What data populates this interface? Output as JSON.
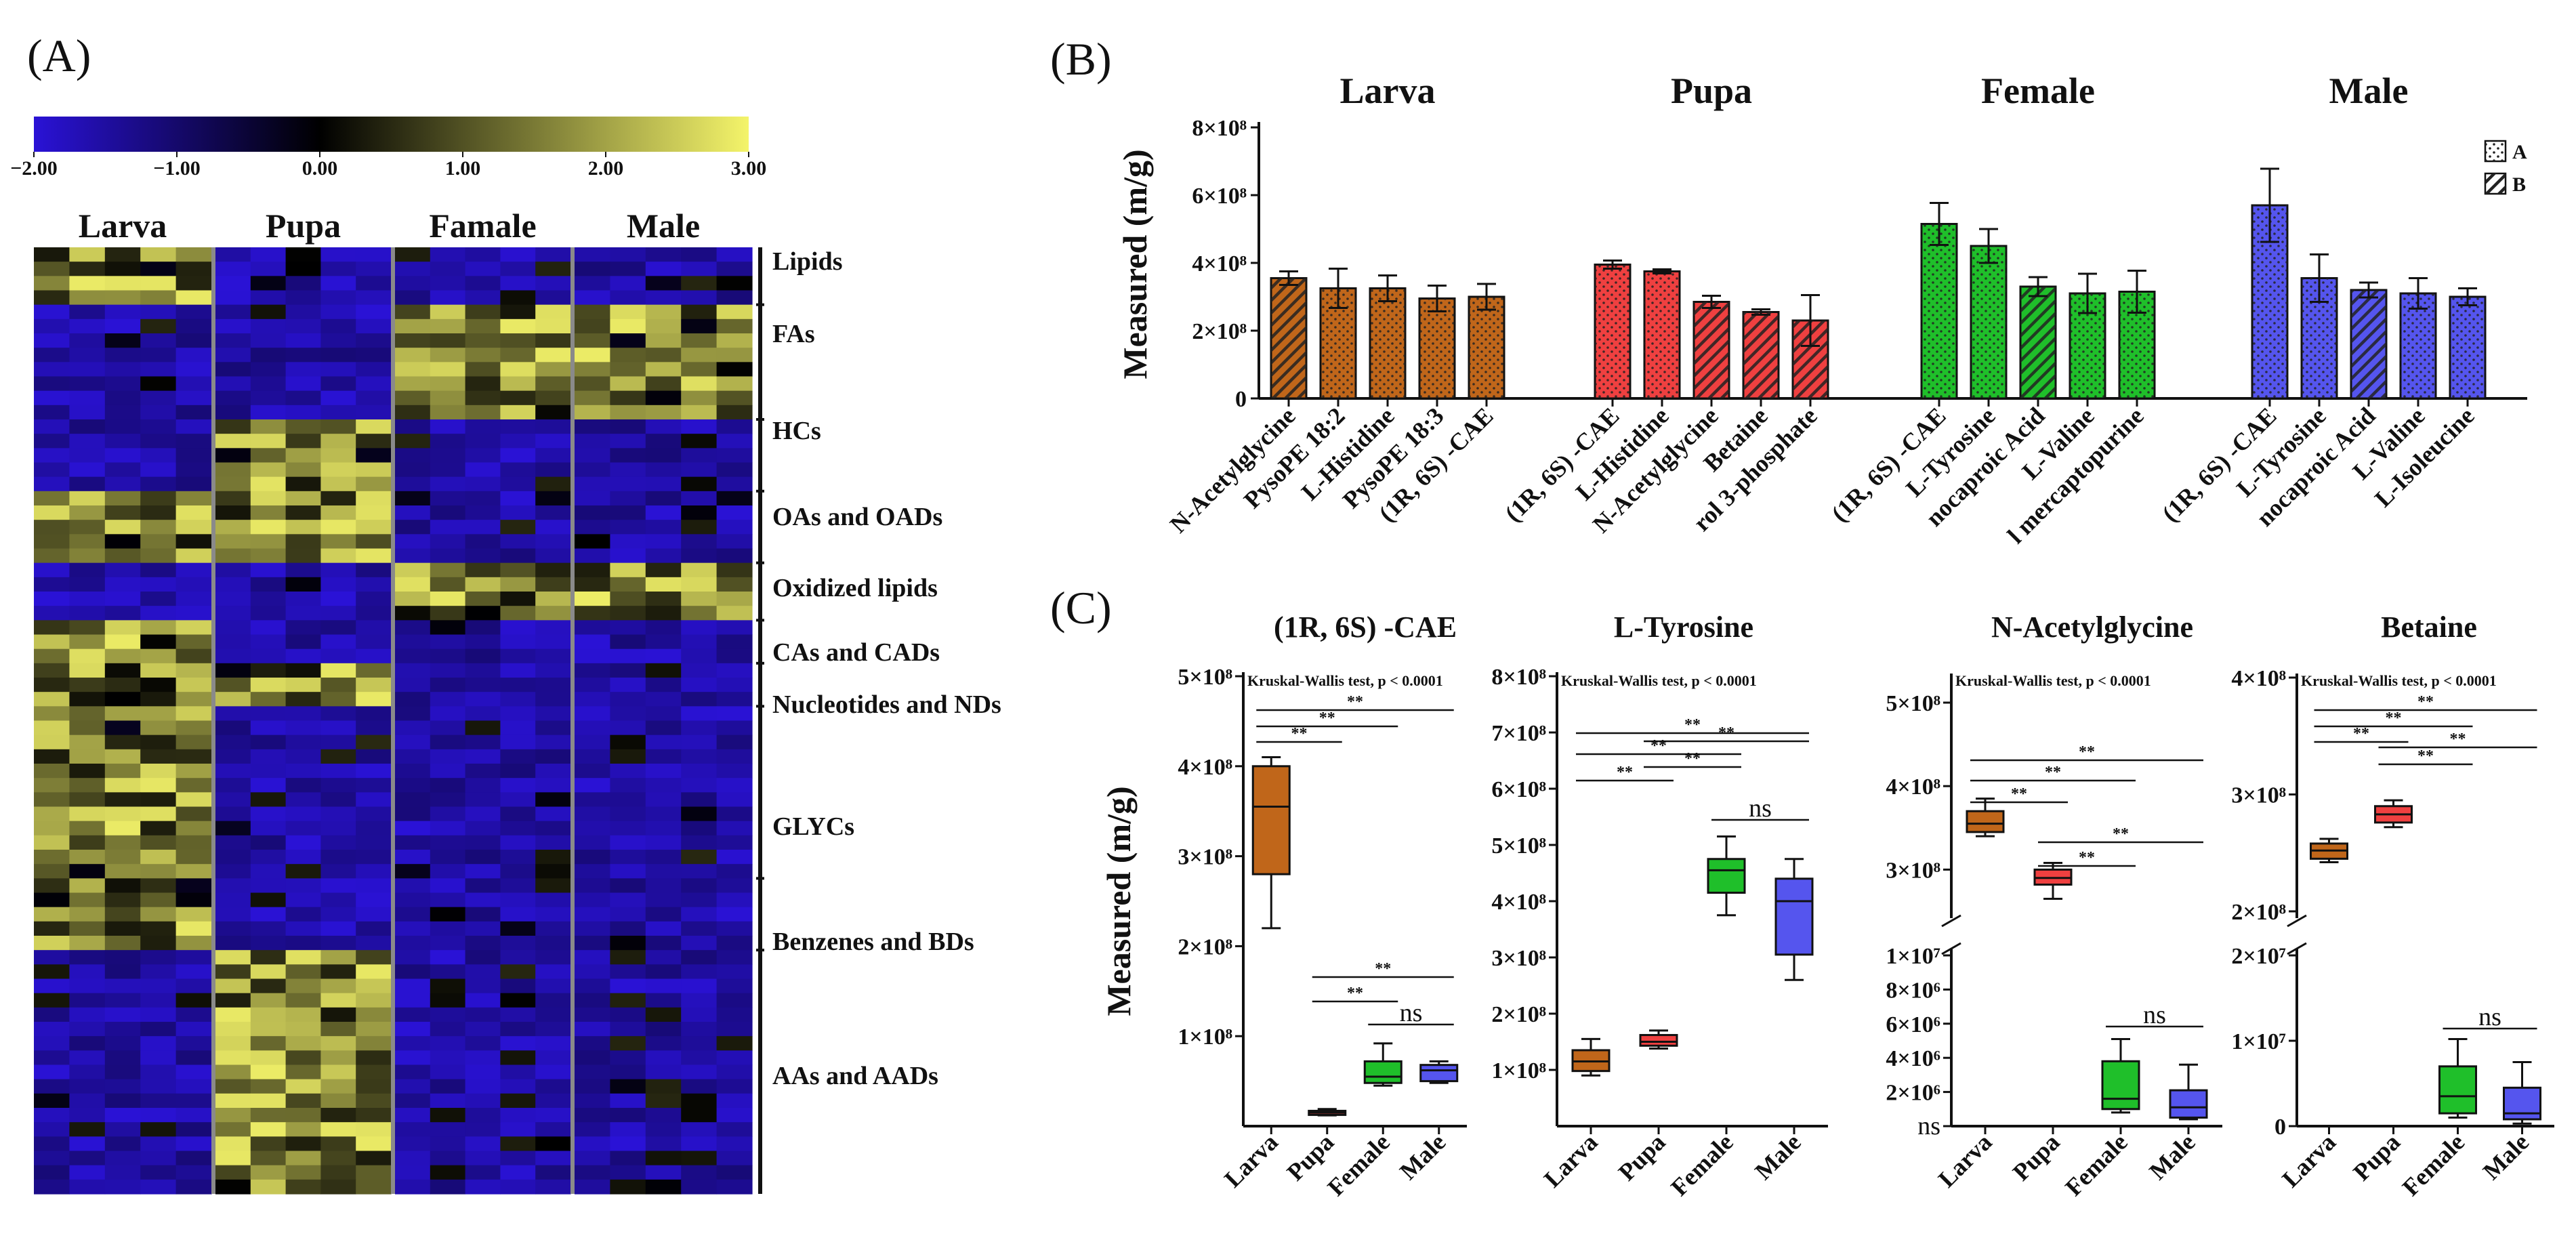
{
  "panels": {
    "a": "(A)",
    "b": "(B)",
    "c": "(C)"
  },
  "heatmap": {
    "colorbar_ticks": [
      "−2.00",
      "−1.00",
      "0.00",
      "1.00",
      "2.00",
      "3.00"
    ],
    "colorbar_range": [
      -2,
      3
    ],
    "colors": {
      "low": "#2a12d6",
      "mid": "#000000",
      "high": "#f4f46a"
    },
    "columns": [
      "Larva",
      "Pupa",
      "Famale",
      "Male"
    ],
    "row_groups": [
      "Lipids",
      "FAs",
      "HCs",
      "OAs and OADs",
      "Oxidized lipids",
      "CAs and CADs",
      "Nucleotides and NDs",
      "GLYCs",
      "Benzenes and BDs",
      "AAs and AADs"
    ]
  },
  "chart_data": [
    {
      "type": "bar",
      "ylabel": "Measured (m/g)",
      "yticks": [
        "0",
        "2×10⁸",
        "4×10⁸",
        "6×10⁸",
        "8×10⁸"
      ],
      "ylim": [
        0,
        800000000
      ],
      "legend": [
        "A",
        "B"
      ],
      "legend_position": "top-right",
      "groups": [
        {
          "name": "Larva",
          "color": "#c0661a",
          "categories": [
            "N-Acetylglycine",
            "PysoPE 18:2",
            "L-Histidine",
            "PysoPE 18:3",
            "(1R, 6S) -CAE"
          ],
          "values": [
            355000000,
            325000000,
            325000000,
            295000000,
            300000000
          ],
          "errors": [
            20000000,
            58000000,
            38000000,
            38000000,
            38000000
          ],
          "pattern": [
            "B",
            "A",
            "A",
            "A",
            "A"
          ]
        },
        {
          "name": "Pupa",
          "color": "#ef4040",
          "categories": [
            "(1R, 6S) -CAE",
            "L-Histidine",
            "N-Acetylglycine",
            "Betaine",
            "rol 3-phosphate"
          ],
          "values": [
            395000000,
            375000000,
            285000000,
            255000000,
            230000000
          ],
          "errors": [
            12000000,
            6000000,
            18000000,
            8000000,
            75000000
          ],
          "pattern": [
            "A",
            "A",
            "B",
            "B",
            "B"
          ]
        },
        {
          "name": "Female",
          "color": "#1fbf2a",
          "categories": [
            "(1R, 6S) -CAE",
            "L-Tyrosine",
            "nocaproic Acid",
            "L-Valine",
            "l mercaptopurine"
          ],
          "values": [
            515000000,
            450000000,
            330000000,
            310000000,
            315000000
          ],
          "errors": [
            62000000,
            50000000,
            28000000,
            58000000,
            62000000
          ],
          "pattern": [
            "A",
            "A",
            "B",
            "A",
            "A"
          ]
        },
        {
          "name": "Male",
          "color": "#5555ee",
          "categories": [
            "(1R, 6S) -CAE",
            "L-Tyrosine",
            "nocaproic Acid",
            "L-Valine",
            "L-Isoleucine"
          ],
          "values": [
            570000000,
            355000000,
            320000000,
            310000000,
            300000000
          ],
          "errors": [
            108000000,
            70000000,
            22000000,
            45000000,
            25000000
          ],
          "pattern": [
            "A",
            "A",
            "B",
            "A",
            "A"
          ]
        }
      ]
    },
    {
      "type": "box",
      "title": "(1R, 6S) -CAE",
      "ylabel": "Measured (m/g)",
      "stat_text": "Kruskal-Wallis test, p < 0.0001",
      "categories": [
        "Larva",
        "Pupa",
        "Female",
        "Male"
      ],
      "yticks": [
        "1×10⁸",
        "2×10⁸",
        "3×10⁸",
        "4×10⁸",
        "5×10⁸"
      ],
      "ylim": [
        0,
        500000000
      ],
      "boxes": [
        {
          "min": 220000000,
          "q1": 280000000,
          "median": 355000000,
          "q3": 400000000,
          "max": 410000000
        },
        {
          "min": 12000000,
          "q1": 13000000,
          "median": 15000000,
          "q3": 17000000,
          "max": 19000000
        },
        {
          "min": 45000000,
          "q1": 48000000,
          "median": 55000000,
          "q3": 72000000,
          "max": 92000000
        },
        {
          "min": 48000000,
          "q1": 50000000,
          "median": 62000000,
          "q3": 68000000,
          "max": 72000000
        }
      ],
      "significance": [
        "**",
        "**",
        "**",
        "**",
        "**",
        "ns"
      ]
    },
    {
      "type": "box",
      "title": "L-Tyrosine",
      "stat_text": "Kruskal-Wallis test, p < 0.0001",
      "categories": [
        "Larva",
        "Pupa",
        "Female",
        "Male"
      ],
      "yticks": [
        "1×10⁸",
        "2×10⁸",
        "3×10⁸",
        "4×10⁸",
        "5×10⁸",
        "6×10⁸",
        "7×10⁸",
        "8×10⁸"
      ],
      "ylim": [
        0,
        800000000
      ],
      "boxes": [
        {
          "min": 90000000,
          "q1": 98000000,
          "median": 115000000,
          "q3": 135000000,
          "max": 155000000
        },
        {
          "min": 138000000,
          "q1": 143000000,
          "median": 150000000,
          "q3": 162000000,
          "max": 170000000
        },
        {
          "min": 375000000,
          "q1": 415000000,
          "median": 455000000,
          "q3": 475000000,
          "max": 515000000
        },
        {
          "min": 260000000,
          "q1": 305000000,
          "median": 400000000,
          "q3": 440000000,
          "max": 475000000
        }
      ],
      "significance": [
        "**",
        "**",
        "**",
        "**",
        "**",
        "ns"
      ]
    },
    {
      "type": "box",
      "title": "N-Acetylglycine",
      "stat_text": "Kruskal-Wallis test, p < 0.0001",
      "categories": [
        "Larva",
        "Pupa",
        "Female",
        "Male"
      ],
      "yticks_upper": [
        "3×10⁸",
        "4×10⁸",
        "5×10⁸"
      ],
      "ylim_upper": [
        250000000,
        530000000
      ],
      "yticks_lower": [
        "ns",
        "2×10⁶",
        "4×10⁶",
        "6×10⁶",
        "8×10⁶",
        "1×10⁷"
      ],
      "ylim_lower": [
        0,
        10000000
      ],
      "boxes": [
        {
          "min": 340000000,
          "q1": 345000000,
          "median": 355000000,
          "q3": 370000000,
          "max": 385000000,
          "segment": "upper"
        },
        {
          "min": 265000000,
          "q1": 282000000,
          "median": 290000000,
          "q3": 300000000,
          "max": 308000000,
          "segment": "upper"
        },
        {
          "min": 800000,
          "q1": 1000000,
          "median": 1600000,
          "q3": 3800000,
          "max": 5100000,
          "segment": "lower"
        },
        {
          "min": 400000,
          "q1": 500000,
          "median": 1100000,
          "q3": 2100000,
          "max": 3600000,
          "segment": "lower"
        }
      ],
      "significance": [
        "**",
        "**",
        "**",
        "**",
        "**",
        "ns"
      ]
    },
    {
      "type": "box",
      "title": "Betaine",
      "stat_text": "Kruskal-Wallis test, p < 0.0001",
      "categories": [
        "Larva",
        "Pupa",
        "Female",
        "Male"
      ],
      "yticks_upper": [
        "2×10⁸",
        "3×10⁸",
        "4×10⁸"
      ],
      "ylim_upper": [
        200000000,
        400000000
      ],
      "yticks_lower": [
        "0",
        "1×10⁷",
        "2×10⁷"
      ],
      "ylim_lower": [
        0,
        20000000
      ],
      "boxes": [
        {
          "min": 242000000,
          "q1": 245000000,
          "median": 252000000,
          "q3": 258000000,
          "max": 262000000,
          "segment": "upper"
        },
        {
          "min": 272000000,
          "q1": 276000000,
          "median": 283000000,
          "q3": 290000000,
          "max": 295000000,
          "segment": "upper"
        },
        {
          "min": 1000000,
          "q1": 1500000,
          "median": 3500000,
          "q3": 7000000,
          "max": 10200000,
          "segment": "lower"
        },
        {
          "min": 300000,
          "q1": 800000,
          "median": 1500000,
          "q3": 4500000,
          "max": 7500000,
          "segment": "lower"
        }
      ],
      "significance": [
        "**",
        "**",
        "**",
        "**",
        "**",
        "ns"
      ]
    }
  ]
}
